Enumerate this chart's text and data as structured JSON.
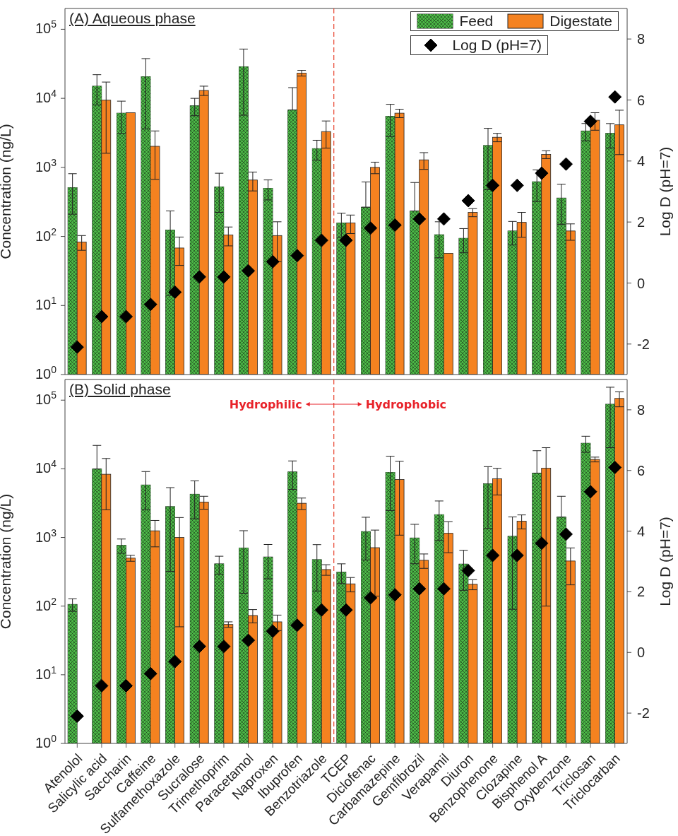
{
  "chart_data": [
    {
      "type": "bar",
      "title": "(A) Aqueous phase",
      "ylabel": "Concentration (ng/L)",
      "y2label": "Log D (pH=7)",
      "categories": [
        null,
        null,
        null,
        null,
        null,
        null,
        null,
        null,
        null,
        null,
        null,
        null,
        null,
        null,
        null,
        null,
        null,
        null,
        null,
        null,
        null,
        null,
        null
      ],
      "series": [
        {
          "name": "Feed",
          "color": "#4cb847",
          "values": [
            510,
            15000,
            6100,
            20600,
            124,
            7800,
            523,
            28700,
            498,
            6780,
            1870,
            157,
            265,
            5490,
            234,
            106,
            94,
            2075,
            120,
            620,
            360,
            3370,
            3110
          ],
          "errors": [
            300,
            7000,
            3000,
            17000,
            110,
            2200,
            300,
            23000,
            160,
            7500,
            600,
            60,
            350,
            2700,
            370,
            57,
            36,
            1600,
            45,
            300,
            210,
            950,
            1200
          ]
        },
        {
          "name": "Digestate",
          "color": "#f58220",
          "values": [
            83,
            9400,
            6200,
            2020,
            68,
            13000,
            105,
            656,
            103,
            23200,
            3300,
            157,
            1000,
            6100,
            1285,
            57,
            223,
            2730,
            160,
            1540,
            120,
            4820,
            4130
          ],
          "errors": [
            20,
            7800,
            null,
            1350,
            30,
            2000,
            32,
            200,
            60,
            2200,
            1400,
            47,
            190,
            850,
            350,
            null,
            30,
            380,
            63,
            200,
            32,
            1370,
            2600
          ]
        },
        {
          "name": "Log D (pH=7)",
          "type": "scatter",
          "axis": "y2",
          "color": "#000000",
          "marker": "diamond",
          "values": [
            -2.1,
            -1.1,
            -1.1,
            -0.7,
            -0.3,
            0.2,
            0.2,
            0.4,
            0.7,
            0.9,
            1.4,
            1.4,
            1.8,
            1.9,
            2.1,
            2.1,
            2.7,
            3.2,
            3.2,
            3.6,
            3.9,
            5.3,
            6.1
          ]
        }
      ],
      "log": "y",
      "ylim": [
        1,
        200000
      ],
      "yticks": [
        {
          "value": 1,
          "label": "10$^{0}$"
        },
        {
          "value": 10,
          "label": "10$^{1}$"
        },
        {
          "value": 100,
          "label": "10$^{2}$"
        },
        {
          "value": 1000,
          "label": "10$^{3}$"
        },
        {
          "value": 10000,
          "label": "10$^{4}$"
        },
        {
          "value": 100000,
          "label": "10$^{5}$"
        }
      ],
      "y2lim": [
        -3,
        9
      ],
      "y2ticks": [
        -2,
        0,
        2,
        4,
        6,
        8
      ],
      "legend": "top right",
      "tick_labels": "y"
    },
    {
      "type": "bar",
      "title": "(B) Solid phase",
      "ylabel": "Concentration (ng/L)",
      "y2label": "Log D (pH=7)",
      "categories": [
        "Atenolol",
        "Salicylic acid",
        "Saccharin",
        "Caffeine",
        "Sulfamethoxazole",
        "Sucralose",
        "Trimethoprim",
        "Paracetamol",
        "Naproxen",
        "Ibuprofen",
        "Benzotriazole",
        "TCEP",
        "Diclofenac",
        "Carbamazepine",
        "Gemfibrozil",
        "Verapamil",
        "Diuron",
        "Benzophenone",
        "Clozapine",
        "Bisphenol A",
        "Oxybenzone",
        "Triclosan",
        "Triclocarban"
      ],
      "series": [
        {
          "color": "#4cb847",
          "values": [
            106,
            9930,
            769,
            5820,
            2820,
            4270,
            413,
            704,
            520,
            9020,
            476,
            313,
            1220,
            8870,
            984,
            2150,
            410,
            6050,
            1040,
            8660,
            1980,
            23600,
            87300
          ],
          "errors": [
            22,
            12000,
            180,
            3300,
            2500,
            2400,
            120,
            550,
            270,
            4000,
            310,
            100,
            750,
            6400,
            570,
            1250,
            240,
            4700,
            950,
            9700,
            2000,
            6200,
            67000
          ]
        },
        {
          "color": "#f58220",
          "values": [
            null,
            8330,
            500,
            1250,
            1000,
            3280,
            54,
            73,
            59,
            3150,
            341,
            211,
            710,
            6980,
            465,
            1150,
            208,
            7160,
            1730,
            10200,
            454,
            13700,
            106000
          ],
          "errors": [
            null,
            5800,
            50,
            520,
            950,
            700,
            5,
            16,
            15,
            600,
            60,
            50,
            570,
            5900,
            110,
            550,
            35,
            3000,
            400,
            10100,
            250,
            1100,
            26000
          ]
        },
        {
          "type": "scatter",
          "axis": "y2",
          "color": "#000000",
          "marker": "diamond",
          "values": [
            -2.1,
            -1.1,
            -1.1,
            -0.7,
            -0.3,
            0.2,
            0.2,
            0.4,
            0.7,
            0.9,
            1.4,
            1.4,
            1.8,
            1.9,
            2.1,
            2.1,
            2.7,
            3.2,
            3.2,
            3.6,
            3.9,
            5.3,
            6.1
          ]
        }
      ],
      "log": "y",
      "ylim": [
        1,
        200000
      ],
      "yticks": [
        {
          "value": 1,
          "label": "10$^{0}$"
        },
        {
          "value": 10,
          "label": "10$^{1}$"
        },
        {
          "value": 100,
          "label": "10$^{2}$"
        },
        {
          "value": 1000,
          "label": "10$^{3}$"
        },
        {
          "value": 10000,
          "label": "10$^{4}$"
        },
        {
          "value": 100000,
          "label": "10$^{5}$"
        }
      ],
      "y2lim": [
        -3,
        9
      ],
      "y2ticks": [
        -2,
        0,
        2,
        4,
        6,
        8
      ],
      "annotations": [
        "Hydrophilic",
        "Hydrophobic"
      ]
    }
  ]
}
